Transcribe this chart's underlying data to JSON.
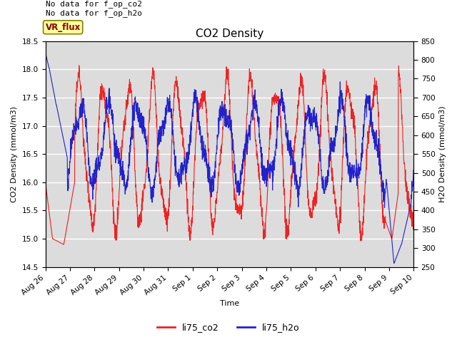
{
  "title": "CO2 Density",
  "xlabel": "Time",
  "ylabel_left": "CO2 Density (mmol/m3)",
  "ylabel_right": "H2O Density (mmol/m3)",
  "ylim_left": [
    14.5,
    18.5
  ],
  "ylim_right": [
    250,
    850
  ],
  "annotation_text": "No data for f_op_co2\nNo data for f_op_h2o",
  "vr_flux_label": "VR_flux",
  "legend_entries": [
    "li75_co2",
    "li75_h2o"
  ],
  "line_color_co2": "#EE2222",
  "line_color_h2o": "#2222CC",
  "plot_bg_color": "#DCDCDC",
  "fig_bg_color": "#FFFFFF",
  "grid_color": "#FFFFFF",
  "annotation_fontsize": 8,
  "title_fontsize": 11,
  "axis_label_fontsize": 8,
  "tick_label_fontsize": 7.5,
  "x_tick_labels": [
    "Aug 26",
    "Aug 27",
    "Aug 28",
    "Aug 29",
    "Aug 30",
    "Aug 31",
    "Sep 1",
    "Sep 2",
    "Sep 3",
    "Sep 4",
    "Sep 5",
    "Sep 6",
    "Sep 7",
    "Sep 8",
    "Sep 9",
    "Sep 10"
  ],
  "x_tick_positions": [
    0,
    1,
    2,
    3,
    4,
    5,
    6,
    7,
    8,
    9,
    10,
    11,
    12,
    13,
    14,
    15
  ]
}
